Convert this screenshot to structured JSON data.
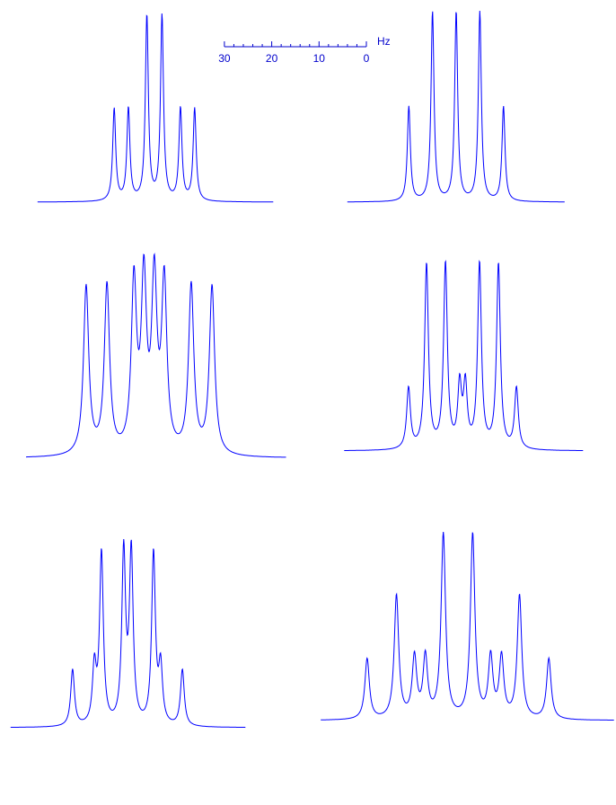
{
  "scale_bar": {
    "unit": "Hz",
    "xlim": [
      30,
      0
    ],
    "xticks": [
      30,
      20,
      10,
      0
    ],
    "minor_xticks": [
      28,
      26,
      24,
      22,
      18,
      16,
      14,
      12,
      8,
      6,
      4,
      2
    ],
    "color": "#0000cc"
  },
  "chart_data": [
    {
      "type": "spectrum",
      "color": "#0000ff",
      "xlim": [
        24.7,
        -25.2
      ],
      "peaks": [
        8.5,
        5.5,
        1.6,
        -1.6,
        -5.5,
        -8.5
      ],
      "intensities": [
        0.5,
        0.5,
        1,
        1,
        0.5,
        0.5
      ]
    },
    {
      "type": "spectrum",
      "color": "#0000ff",
      "xlim": [
        23,
        -23
      ],
      "peaks": [
        10,
        5,
        0,
        -5,
        -10
      ],
      "intensities": [
        0.5,
        1,
        1,
        1,
        0.5
      ]
    },
    {
      "type": "spectrum",
      "color": "#0000ff",
      "xlim": [
        26,
        -29
      ],
      "peaks": [
        13.3,
        8.9,
        3.2,
        1.1,
        -1.1,
        -3.2,
        -8.9,
        -13.3
      ],
      "intensities": [
        1,
        1,
        1,
        1,
        1,
        1,
        1,
        1
      ]
    },
    {
      "type": "spectrum",
      "color": "#0000ff",
      "xlim": [
        25,
        -25.5
      ],
      "peaks": [
        11.4,
        7.6,
        3.6,
        0.6,
        -0.6,
        -3.6,
        -7.6,
        -11.4
      ],
      "intensities": [
        0.33,
        1,
        1,
        0.33,
        0.33,
        1,
        1,
        0.33
      ]
    },
    {
      "type": "spectrum",
      "color": "#0000ff",
      "xlim": [
        24.7,
        -25
      ],
      "peaks": [
        11.6,
        7,
        5.5,
        0.8,
        -0.8,
        -5.5,
        -7,
        -11.6
      ],
      "intensities": [
        0.33,
        0.33,
        1,
        1,
        1,
        1,
        0.33,
        0.33
      ]
    },
    {
      "type": "spectrum",
      "color": "#0000ff",
      "xlim": [
        29,
        -33
      ],
      "peaks": [
        19.2,
        13,
        9.2,
        6.9,
        3.1,
        -3.1,
        -6.9,
        -9.2,
        -13,
        -19.2
      ],
      "intensities": [
        0.33,
        0.67,
        0.33,
        0.33,
        1,
        1,
        0.33,
        0.33,
        0.67,
        0.33
      ]
    }
  ]
}
